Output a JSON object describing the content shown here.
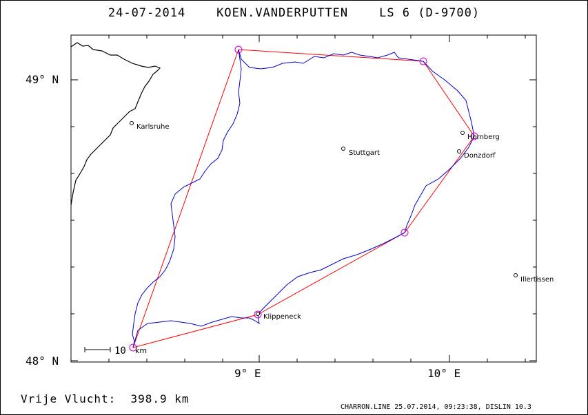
{
  "title": "24-07-2014    KOEN.VANDERPUTTEN    LS 6 (D-9700)",
  "footer": {
    "distance_label": "Vrije Vlucht:  398.9 km",
    "software_line": "CHARRON.LINE 25.07.2014, 09:23:38, DISLIN 10.3"
  },
  "axes": {
    "lat_top": "49° N",
    "lat_bottom": "48° N",
    "lon_left": "9° E",
    "lon_right": "10° E"
  },
  "scale_bar": {
    "value": "10",
    "unit": "km"
  },
  "cities": [
    {
      "name": "Karlsruhe"
    },
    {
      "name": "Stuttgart"
    },
    {
      "name": "Hornberg"
    },
    {
      "name": "Donzdorf"
    },
    {
      "name": "Illertissen"
    },
    {
      "name": "Klippeneck"
    }
  ],
  "colors": {
    "track": "#0000cc",
    "task": "#ff0000",
    "turnpoint": "#cc00cc",
    "border": "#000000"
  }
}
